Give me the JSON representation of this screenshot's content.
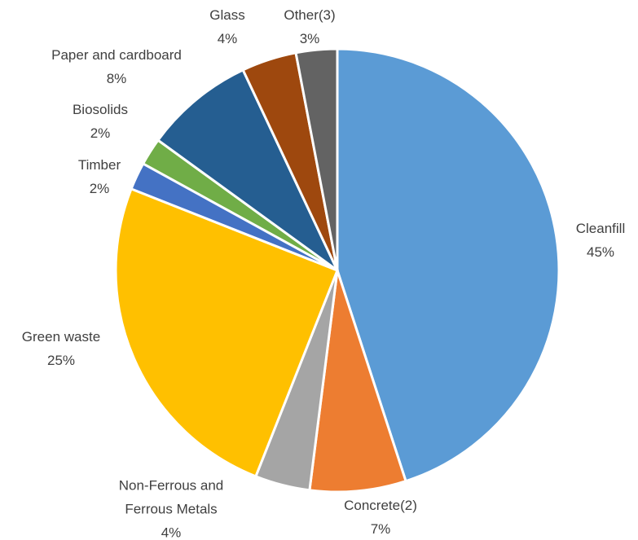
{
  "chart_data": {
    "type": "pie",
    "categories": [
      "Cleanfill",
      "Concrete(2)",
      "Non-Ferrous and Ferrous Metals",
      "Green waste",
      "Timber",
      "Biosolids",
      "Paper and cardboard",
      "Glass",
      "Other(3)"
    ],
    "values": [
      45,
      7,
      4,
      25,
      2,
      2,
      8,
      4,
      3
    ],
    "value_labels": [
      "45%",
      "7%",
      "4%",
      "25%",
      "2%",
      "2%",
      "8%",
      "4%",
      "3%"
    ],
    "colors": [
      "#5b9bd5",
      "#ed7d31",
      "#a5a5a5",
      "#ffc000",
      "#4472c4",
      "#70ad47",
      "#255e91",
      "#9e480e",
      "#636363"
    ]
  }
}
